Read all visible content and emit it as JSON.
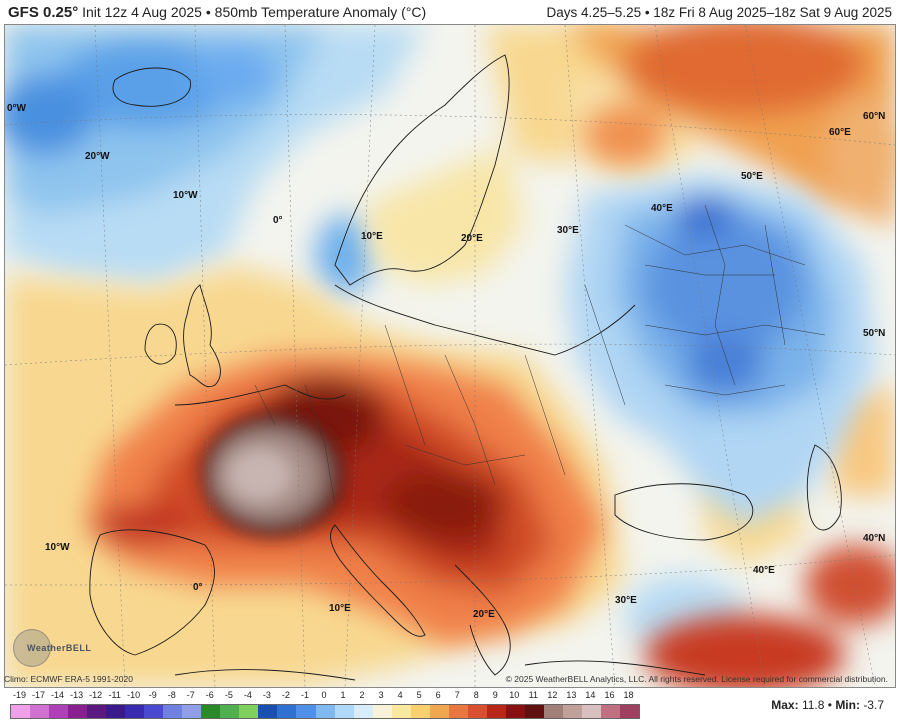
{
  "header": {
    "model": "GFS 0.25",
    "degree_mark": "°",
    "init": "Init 12z 4 Aug 2025",
    "separator": "•",
    "product": "850mb Temperature Anomaly (°C)",
    "valid": "Days 4.25–5.25 • 18z Fri 8 Aug 2025–18z Sat 9 Aug 2025"
  },
  "map_labels": {
    "w0": "0°W",
    "w20": "20°W",
    "w10a": "10°W",
    "deg0a": "0°",
    "e10a": "10°E",
    "e20a": "20°E",
    "e30a": "30°E",
    "e40a": "40°E",
    "e50a": "50°E",
    "e60": "60°E",
    "n60": "60°N",
    "n50": "50°N",
    "n40": "40°N",
    "e40b": "40°E",
    "w10b": "10°W",
    "deg0b": "0°",
    "e10b": "10°E",
    "e20b": "20°E",
    "e30b": "30°E"
  },
  "footer": {
    "climo": "Climo: ECMWF ERA-5 1991-2020",
    "copyright": "© 2025 WeatherBELL Analytics, LLC. All rights reserved. License required for commercial distribution.",
    "logo_text": "WeatherBELL"
  },
  "colorbar": {
    "ticks": [
      "-19",
      "-17",
      "-14",
      "-13",
      "-12",
      "-11",
      "-10",
      "-9",
      "-8",
      "-7",
      "-6",
      "-5",
      "-4",
      "-3",
      "-2",
      "-1",
      "0",
      "1",
      "2",
      "3",
      "4",
      "5",
      "6",
      "7",
      "8",
      "9",
      "10",
      "11",
      "12",
      "13",
      "14",
      "16",
      "18"
    ],
    "colors": [
      "#f0a0e8",
      "#d070d0",
      "#b040b8",
      "#8a2090",
      "#5a1a80",
      "#3a1a8a",
      "#3a2ab0",
      "#4a4ad0",
      "#7080e0",
      "#90a0e8",
      "#2a8a2a",
      "#50b050",
      "#80d060",
      "#1a50b0",
      "#3070d0",
      "#5090e8",
      "#80b8f0",
      "#b0d8f8",
      "#d8ecfa",
      "#f8f2d8",
      "#f8e8a0",
      "#f8d070",
      "#f0a850",
      "#e87840",
      "#d85030",
      "#b82818",
      "#881010",
      "#601010",
      "#a08078",
      "#c0a098",
      "#d8c0c0",
      "#c07080",
      "#a04060"
    ]
  },
  "stats": {
    "max_label": "Max:",
    "max_value": "11.8",
    "separator": "•",
    "min_label": "Min:",
    "min_value": "-3.7"
  },
  "colors": {
    "warm_core": "#8a1a10",
    "extreme_core": "#a88880",
    "cool_core": "#4a7ad8",
    "neutral": "#f5f3e8"
  }
}
